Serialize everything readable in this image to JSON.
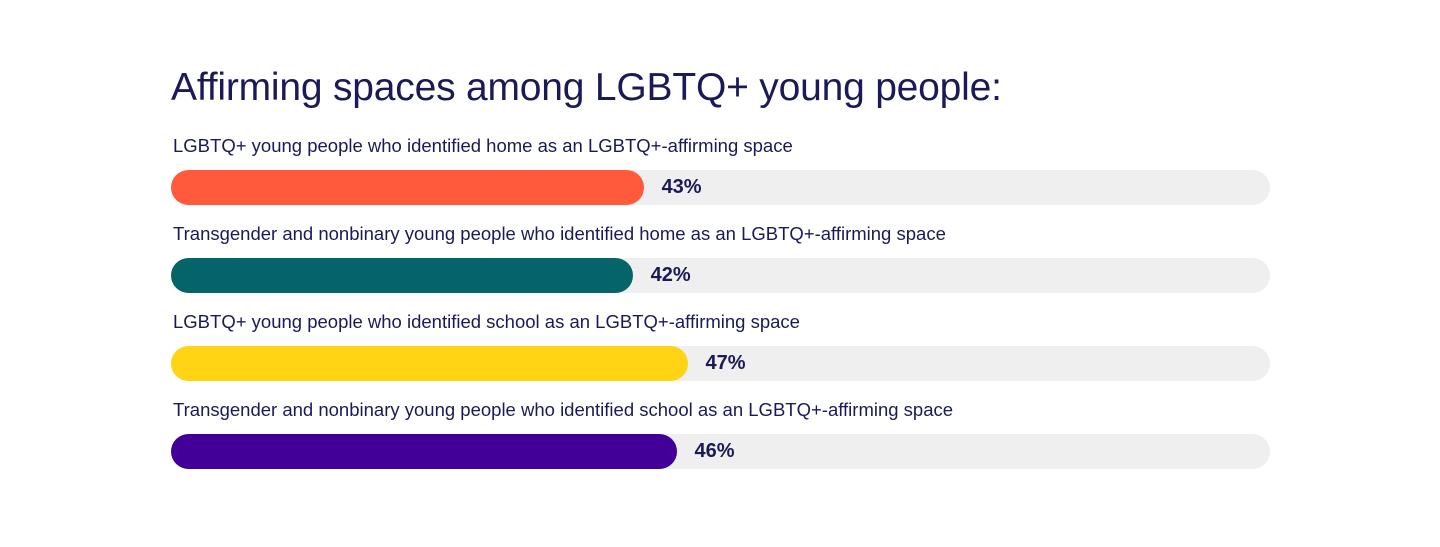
{
  "chart_data": {
    "type": "bar",
    "orientation": "horizontal",
    "title": "Affirming spaces among LGBTQ+ young people:",
    "categories": [
      "LGBTQ+ young people who identified home as an LGBTQ+-affirming space",
      "Transgender and nonbinary young people who identified home as an LGBTQ+-affirming space",
      "LGBTQ+ young people who identified school as an LGBTQ+-affirming space",
      "Transgender and nonbinary young people who identified school as an LGBTQ+-affirming space"
    ],
    "values": [
      43,
      42,
      47,
      46
    ],
    "value_labels": [
      "43%",
      "42%",
      "47%",
      "46%"
    ],
    "colors": [
      "#ff5a3c",
      "#04646a",
      "#ffd414",
      "#430098"
    ],
    "track_color": "#efefef",
    "xlim": [
      0,
      100
    ],
    "grid": false,
    "legend": "none"
  }
}
